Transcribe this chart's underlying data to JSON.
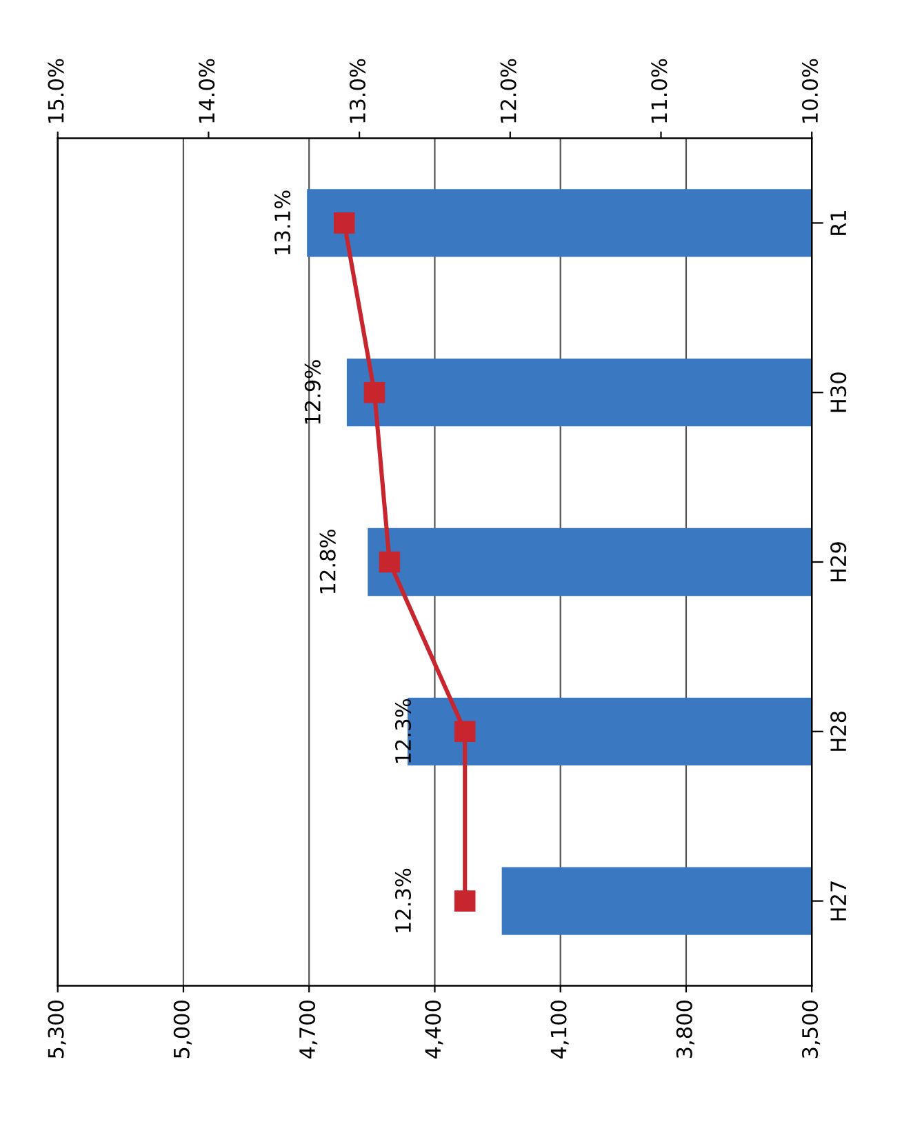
{
  "chart_data": {
    "type": "bar",
    "orientation": "horizontal",
    "categories": [
      "R1",
      "H30",
      "H29",
      "H28",
      "H27"
    ],
    "series": [
      {
        "color": "#3a78c2",
        "values": [
          4705,
          4610,
          4560,
          4465,
          4240
        ]
      },
      {
        "type": "line",
        "axis": "x2",
        "color": "#c8262e",
        "marker": "square",
        "line_style": "solid",
        "values": [
          13.1,
          12.9,
          12.8,
          12.3,
          12.3
        ],
        "value_labels": [
          "13.1%",
          "12.9%",
          "12.8%",
          "12.3%",
          "12.3%"
        ]
      }
    ],
    "xlim": [
      5300,
      3500
    ],
    "xticks": [
      {
        "value": 5300,
        "label": "5,300"
      },
      {
        "value": 5000,
        "label": "5,000"
      },
      {
        "value": 4700,
        "label": "4,700"
      },
      {
        "value": 4400,
        "label": "4,400"
      },
      {
        "value": 4100,
        "label": "4,100"
      },
      {
        "value": 3800,
        "label": "3,800"
      },
      {
        "value": 3500,
        "label": "3,500"
      }
    ],
    "x2lim": [
      15,
      10
    ],
    "x2ticks": [
      {
        "value": 15,
        "label": "15.0%"
      },
      {
        "value": 14,
        "label": "14.0%"
      },
      {
        "value": 13,
        "label": "13.0%"
      },
      {
        "value": 12,
        "label": "12.0%"
      },
      {
        "value": 11,
        "label": "11.0%"
      },
      {
        "value": 10,
        "label": "10.0%"
      }
    ],
    "grid": "x",
    "legend": false
  }
}
